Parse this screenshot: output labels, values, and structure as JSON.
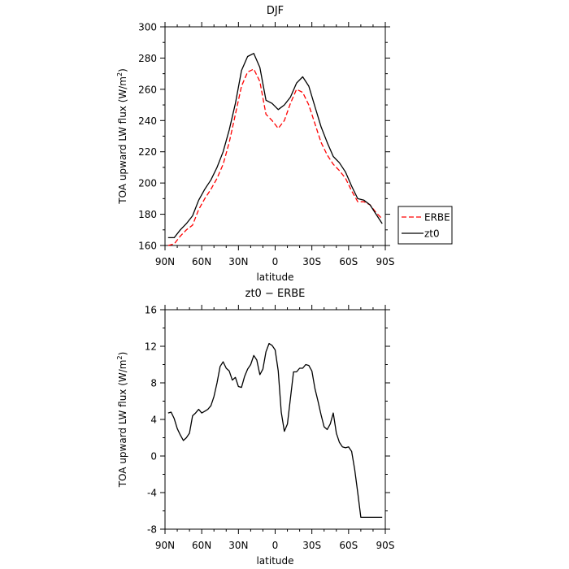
{
  "chart_data": [
    {
      "type": "line",
      "title": "DJF",
      "xlabel": "latitude",
      "ylabel_main": "TOA upward LW flux (W/m",
      "ylabel_sup": "2",
      "ylabel_end": ")",
      "xlim": [
        90,
        -90
      ],
      "ylim": [
        160,
        300
      ],
      "x_ticks": [
        {
          "value": 90,
          "label": "90N"
        },
        {
          "value": 60,
          "label": "60N"
        },
        {
          "value": 30,
          "label": "30N"
        },
        {
          "value": 0,
          "label": "0"
        },
        {
          "value": -30,
          "label": "30S"
        },
        {
          "value": -60,
          "label": "60S"
        },
        {
          "value": -90,
          "label": "90S"
        }
      ],
      "y_ticks": [
        160,
        180,
        200,
        220,
        240,
        260,
        280,
        300
      ],
      "legend": {
        "position": "right"
      },
      "x": [
        87.5,
        82.5,
        77.5,
        72.5,
        67.5,
        62.5,
        57.5,
        52.5,
        47.5,
        42.5,
        37.5,
        32.5,
        27.5,
        22.5,
        17.5,
        12.5,
        7.5,
        2.5,
        -2.5,
        -7.5,
        -12.5,
        -17.5,
        -22.5,
        -27.5,
        -32.5,
        -37.5,
        -42.5,
        -47.5,
        -52.5,
        -57.5,
        -62.5,
        -67.5,
        -72.5,
        -77.5,
        -82.5,
        -87.5
      ],
      "series": [
        {
          "name": "ERBE",
          "color": "#ff0000",
          "dash": true,
          "values": [
            160,
            161,
            166,
            170,
            173,
            183,
            190,
            196,
            203,
            212,
            226,
            244,
            262,
            271,
            273,
            265,
            244,
            240,
            235,
            240,
            251,
            260,
            258,
            250,
            238,
            226,
            218,
            212,
            208,
            203,
            195,
            188,
            188,
            186,
            181,
            177
          ]
        },
        {
          "name": "zt0",
          "color": "#000000",
          "dash": false,
          "values": [
            165,
            165,
            170,
            174,
            179,
            189,
            196,
            202,
            210,
            220,
            234,
            251,
            272,
            281,
            283,
            274,
            253,
            251,
            247,
            250,
            255,
            264,
            268,
            262,
            249,
            236,
            226,
            217,
            213,
            207,
            198,
            190,
            189,
            186,
            180,
            174
          ]
        }
      ]
    },
    {
      "type": "line",
      "title": "zt0 − ERBE",
      "xlabel": "latitude",
      "ylabel_main": "TOA upward LW flux (W/m",
      "ylabel_sup": "2",
      "ylabel_end": ")",
      "xlim": [
        90,
        -90
      ],
      "ylim": [
        -8,
        16
      ],
      "x_ticks": [
        {
          "value": 90,
          "label": "90N"
        },
        {
          "value": 60,
          "label": "60N"
        },
        {
          "value": 30,
          "label": "30N"
        },
        {
          "value": 0,
          "label": "0"
        },
        {
          "value": -30,
          "label": "30S"
        },
        {
          "value": -60,
          "label": "60S"
        },
        {
          "value": -90,
          "label": "90S"
        }
      ],
      "y_ticks": [
        -8,
        -4,
        0,
        4,
        8,
        12,
        16
      ],
      "x": [
        87.5,
        85,
        82.5,
        80,
        77.5,
        75,
        72.5,
        70,
        67.5,
        65,
        62.5,
        60,
        57.5,
        55,
        52.5,
        50,
        47.5,
        45,
        42.5,
        40,
        37.5,
        35,
        32.5,
        30,
        27.5,
        25,
        22.5,
        20,
        17.5,
        15,
        12.5,
        10,
        7.5,
        5,
        2.5,
        0,
        -2.5,
        -5,
        -7.5,
        -10,
        -12.5,
        -15,
        -17.5,
        -20,
        -22.5,
        -25,
        -27.5,
        -30,
        -32.5,
        -35,
        -37.5,
        -40,
        -42.5,
        -45,
        -47.5,
        -50,
        -52.5,
        -55,
        -57.5,
        -60,
        -62.5,
        -65,
        -67.5,
        -70,
        -72.5,
        -75,
        -77.5,
        -80,
        -82.5,
        -85,
        -87.5
      ],
      "series": [
        {
          "name": "",
          "color": "#000000",
          "dash": false,
          "values": [
            4.7,
            4.8,
            4.1,
            3.0,
            2.3,
            1.7,
            2.0,
            2.5,
            4.4,
            4.7,
            5.1,
            4.7,
            4.9,
            5.1,
            5.5,
            6.5,
            8.0,
            9.8,
            10.3,
            9.6,
            9.3,
            8.3,
            8.6,
            7.6,
            7.5,
            8.7,
            9.5,
            10.0,
            11.0,
            10.5,
            8.9,
            9.5,
            11.4,
            12.3,
            12.1,
            11.6,
            9.3,
            4.8,
            2.7,
            3.5,
            6.3,
            9.2,
            9.2,
            9.6,
            9.6,
            10.0,
            9.9,
            9.3,
            7.4,
            6.0,
            4.5,
            3.2,
            2.9,
            3.5,
            4.7,
            2.5,
            1.5,
            1.0,
            0.9,
            1.0,
            0.5,
            -1.5,
            -4.0,
            -6.7,
            -6.7,
            -6.7,
            -6.7,
            -6.7,
            -6.7,
            -6.7,
            -6.7
          ]
        }
      ]
    }
  ]
}
